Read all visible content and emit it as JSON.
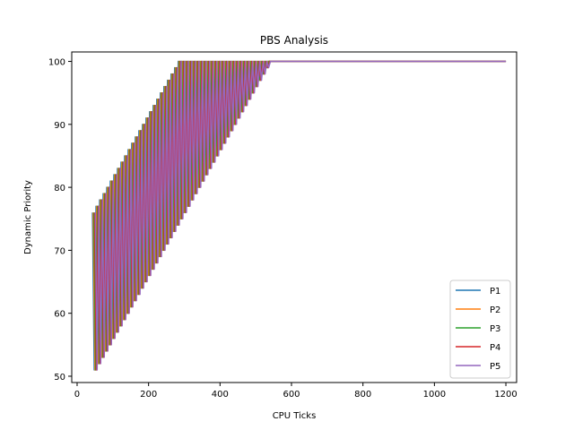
{
  "chart_data": {
    "type": "line",
    "title": "PBS Analysis",
    "xlabel": "CPU Ticks",
    "ylabel": "Dynamic Priority",
    "xlim": [
      -15,
      1230
    ],
    "ylim": [
      49,
      101.5
    ],
    "xticks": [
      0,
      200,
      400,
      600,
      800,
      1000,
      1200
    ],
    "yticks": [
      50,
      60,
      70,
      80,
      90,
      100
    ],
    "grid": false,
    "legend_position": "bottom-right",
    "series": [
      {
        "name": "P1",
        "color": "#1f77b4",
        "start": 43,
        "period": 10,
        "low0": 51,
        "low_step": 1,
        "high0": 76,
        "high_step": 1,
        "cap": 100,
        "flat_from": 610,
        "end": 1200
      },
      {
        "name": "P2",
        "color": "#ff7f0e",
        "start": 45,
        "period": 10,
        "low0": 51,
        "low_step": 1,
        "high0": 76,
        "high_step": 1,
        "cap": 100,
        "flat_from": 612,
        "end": 1200
      },
      {
        "name": "P3",
        "color": "#2ca02c",
        "start": 47,
        "period": 10,
        "low0": 51,
        "low_step": 1,
        "high0": 76,
        "high_step": 1,
        "cap": 100,
        "flat_from": 614,
        "end": 1200
      },
      {
        "name": "P4",
        "color": "#d62728",
        "start": 49,
        "period": 10,
        "low0": 51,
        "low_step": 1,
        "high0": 76,
        "high_step": 1,
        "cap": 100,
        "flat_from": 616,
        "end": 1200
      },
      {
        "name": "P5",
        "color": "#9467bd",
        "start": 51,
        "period": 10,
        "low0": 51,
        "low_step": 1,
        "high0": 76,
        "high_step": 1,
        "cap": 100,
        "flat_from": 618,
        "end": 1200
      }
    ]
  }
}
